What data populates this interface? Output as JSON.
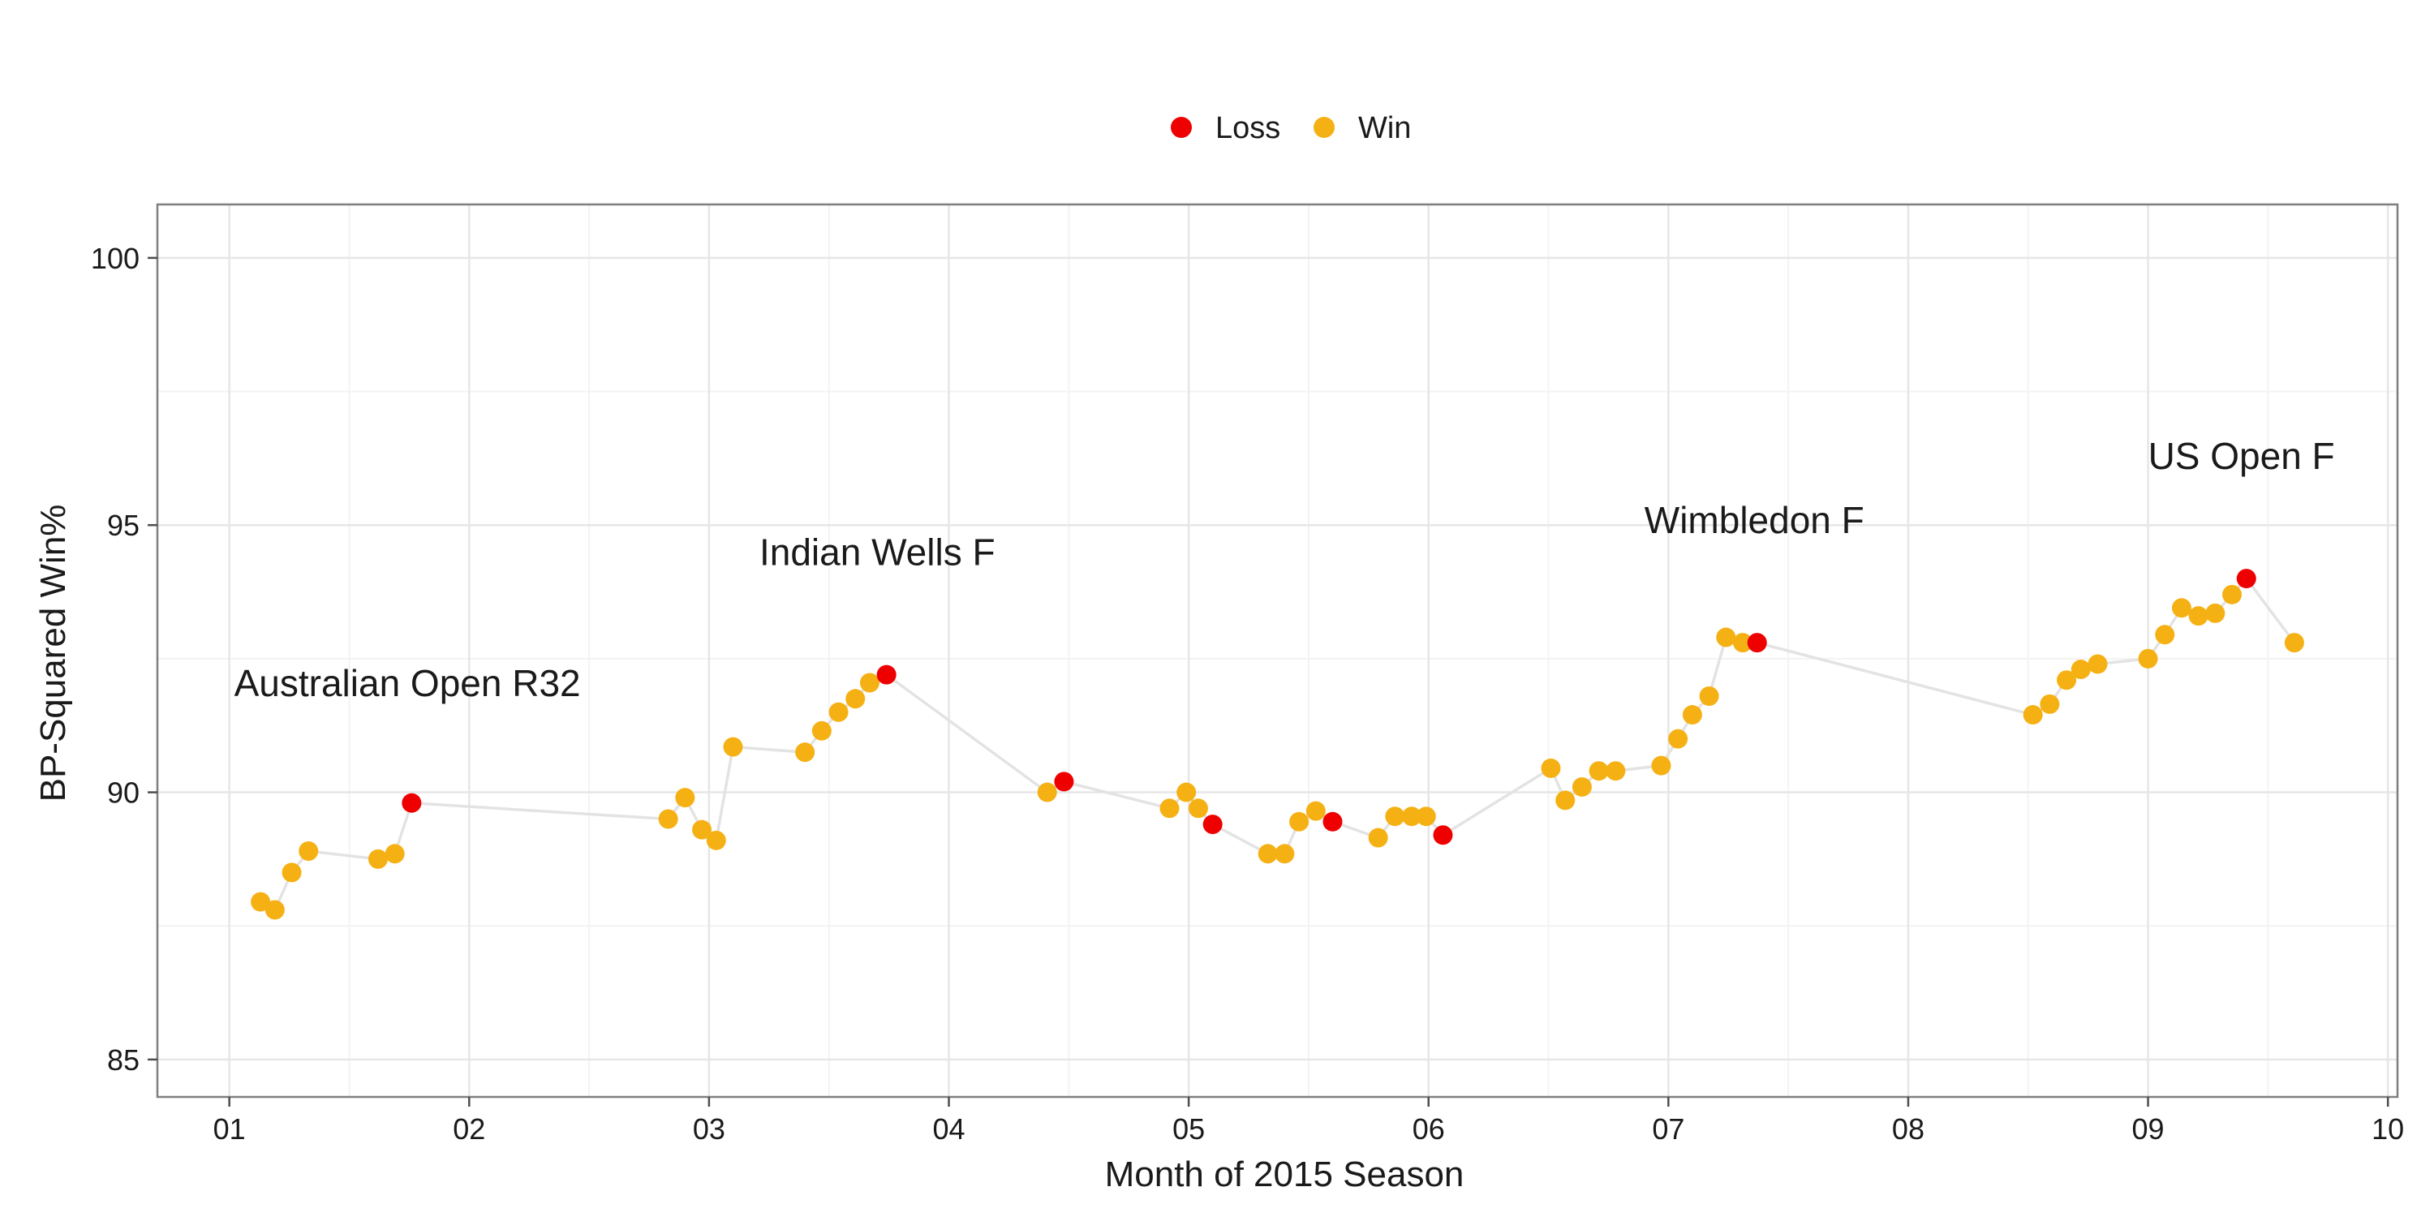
{
  "chart_data": {
    "type": "scatter",
    "title": "",
    "xlabel": "Month of 2015 Season",
    "ylabel": "BP-Squared Win%",
    "xlim": [
      0.7,
      10.04
    ],
    "ylim": [
      84.3,
      101
    ],
    "grid": true,
    "legend_position": "top",
    "x_ticks": [
      {
        "value": 1,
        "label": "01"
      },
      {
        "value": 2,
        "label": "02"
      },
      {
        "value": 3,
        "label": "03"
      },
      {
        "value": 4,
        "label": "04"
      },
      {
        "value": 5,
        "label": "05"
      },
      {
        "value": 6,
        "label": "06"
      },
      {
        "value": 7,
        "label": "07"
      },
      {
        "value": 8,
        "label": "08"
      },
      {
        "value": 9,
        "label": "09"
      },
      {
        "value": 10,
        "label": "10"
      }
    ],
    "y_ticks": [
      {
        "value": 85,
        "label": "85"
      },
      {
        "value": 90,
        "label": "90"
      },
      {
        "value": 95,
        "label": "95"
      },
      {
        "value": 100,
        "label": "100"
      }
    ],
    "legend": [
      {
        "name": "Loss",
        "color": "#ee0000"
      },
      {
        "name": "Win",
        "color": "#f5b114"
      }
    ],
    "line_color": "#e3e3e3",
    "points": [
      {
        "x": 1.13,
        "y": 87.95,
        "result": "Win"
      },
      {
        "x": 1.19,
        "y": 87.8,
        "result": "Win"
      },
      {
        "x": 1.26,
        "y": 88.5,
        "result": "Win"
      },
      {
        "x": 1.33,
        "y": 88.9,
        "result": "Win"
      },
      {
        "x": 1.62,
        "y": 88.75,
        "result": "Win"
      },
      {
        "x": 1.69,
        "y": 88.85,
        "result": "Win"
      },
      {
        "x": 1.76,
        "y": 89.8,
        "result": "Loss"
      },
      {
        "x": 2.83,
        "y": 89.5,
        "result": "Win"
      },
      {
        "x": 2.9,
        "y": 89.9,
        "result": "Win"
      },
      {
        "x": 2.97,
        "y": 89.3,
        "result": "Win"
      },
      {
        "x": 3.03,
        "y": 89.1,
        "result": "Win"
      },
      {
        "x": 3.1,
        "y": 90.85,
        "result": "Win"
      },
      {
        "x": 3.4,
        "y": 90.75,
        "result": "Win"
      },
      {
        "x": 3.47,
        "y": 91.15,
        "result": "Win"
      },
      {
        "x": 3.54,
        "y": 91.5,
        "result": "Win"
      },
      {
        "x": 3.61,
        "y": 91.75,
        "result": "Win"
      },
      {
        "x": 3.67,
        "y": 92.05,
        "result": "Win"
      },
      {
        "x": 3.74,
        "y": 92.2,
        "result": "Loss"
      },
      {
        "x": 4.41,
        "y": 90.0,
        "result": "Win"
      },
      {
        "x": 4.48,
        "y": 90.2,
        "result": "Loss"
      },
      {
        "x": 4.92,
        "y": 89.7,
        "result": "Win"
      },
      {
        "x": 4.99,
        "y": 90.0,
        "result": "Win"
      },
      {
        "x": 5.04,
        "y": 89.7,
        "result": "Win"
      },
      {
        "x": 5.1,
        "y": 89.4,
        "result": "Loss"
      },
      {
        "x": 5.33,
        "y": 88.85,
        "result": "Win"
      },
      {
        "x": 5.4,
        "y": 88.85,
        "result": "Win"
      },
      {
        "x": 5.46,
        "y": 89.45,
        "result": "Win"
      },
      {
        "x": 5.53,
        "y": 89.65,
        "result": "Win"
      },
      {
        "x": 5.6,
        "y": 89.45,
        "result": "Loss"
      },
      {
        "x": 5.79,
        "y": 89.15,
        "result": "Win"
      },
      {
        "x": 5.86,
        "y": 89.55,
        "result": "Win"
      },
      {
        "x": 5.93,
        "y": 89.55,
        "result": "Win"
      },
      {
        "x": 5.99,
        "y": 89.55,
        "result": "Win"
      },
      {
        "x": 6.06,
        "y": 89.2,
        "result": "Loss"
      },
      {
        "x": 6.51,
        "y": 90.45,
        "result": "Win"
      },
      {
        "x": 6.57,
        "y": 89.85,
        "result": "Win"
      },
      {
        "x": 6.64,
        "y": 90.1,
        "result": "Win"
      },
      {
        "x": 6.71,
        "y": 90.4,
        "result": "Win"
      },
      {
        "x": 6.78,
        "y": 90.4,
        "result": "Win"
      },
      {
        "x": 6.97,
        "y": 90.5,
        "result": "Win"
      },
      {
        "x": 7.04,
        "y": 91.0,
        "result": "Win"
      },
      {
        "x": 7.1,
        "y": 91.45,
        "result": "Win"
      },
      {
        "x": 7.17,
        "y": 91.8,
        "result": "Win"
      },
      {
        "x": 7.24,
        "y": 92.9,
        "result": "Win"
      },
      {
        "x": 7.31,
        "y": 92.8,
        "result": "Win"
      },
      {
        "x": 7.37,
        "y": 92.8,
        "result": "Loss"
      },
      {
        "x": 8.52,
        "y": 91.45,
        "result": "Win"
      },
      {
        "x": 8.59,
        "y": 91.65,
        "result": "Win"
      },
      {
        "x": 8.66,
        "y": 92.1,
        "result": "Win"
      },
      {
        "x": 8.72,
        "y": 92.3,
        "result": "Win"
      },
      {
        "x": 8.79,
        "y": 92.4,
        "result": "Win"
      },
      {
        "x": 9.0,
        "y": 92.5,
        "result": "Win"
      },
      {
        "x": 9.07,
        "y": 92.95,
        "result": "Win"
      },
      {
        "x": 9.14,
        "y": 93.45,
        "result": "Win"
      },
      {
        "x": 9.21,
        "y": 93.3,
        "result": "Win"
      },
      {
        "x": 9.28,
        "y": 93.35,
        "result": "Win"
      },
      {
        "x": 9.35,
        "y": 93.7,
        "result": "Win"
      },
      {
        "x": 9.41,
        "y": 94.0,
        "result": "Loss"
      },
      {
        "x": 9.61,
        "y": 92.8,
        "result": "Win"
      }
    ],
    "annotations": [
      {
        "text": "Australian Open R32",
        "x": 1.02,
        "y": 91.8
      },
      {
        "text": "Indian Wells F",
        "x": 3.21,
        "y": 94.25
      },
      {
        "text": "Wimbledon F",
        "x": 6.9,
        "y": 94.85
      },
      {
        "text": "US Open F",
        "x": 9.0,
        "y": 96.05
      }
    ]
  }
}
